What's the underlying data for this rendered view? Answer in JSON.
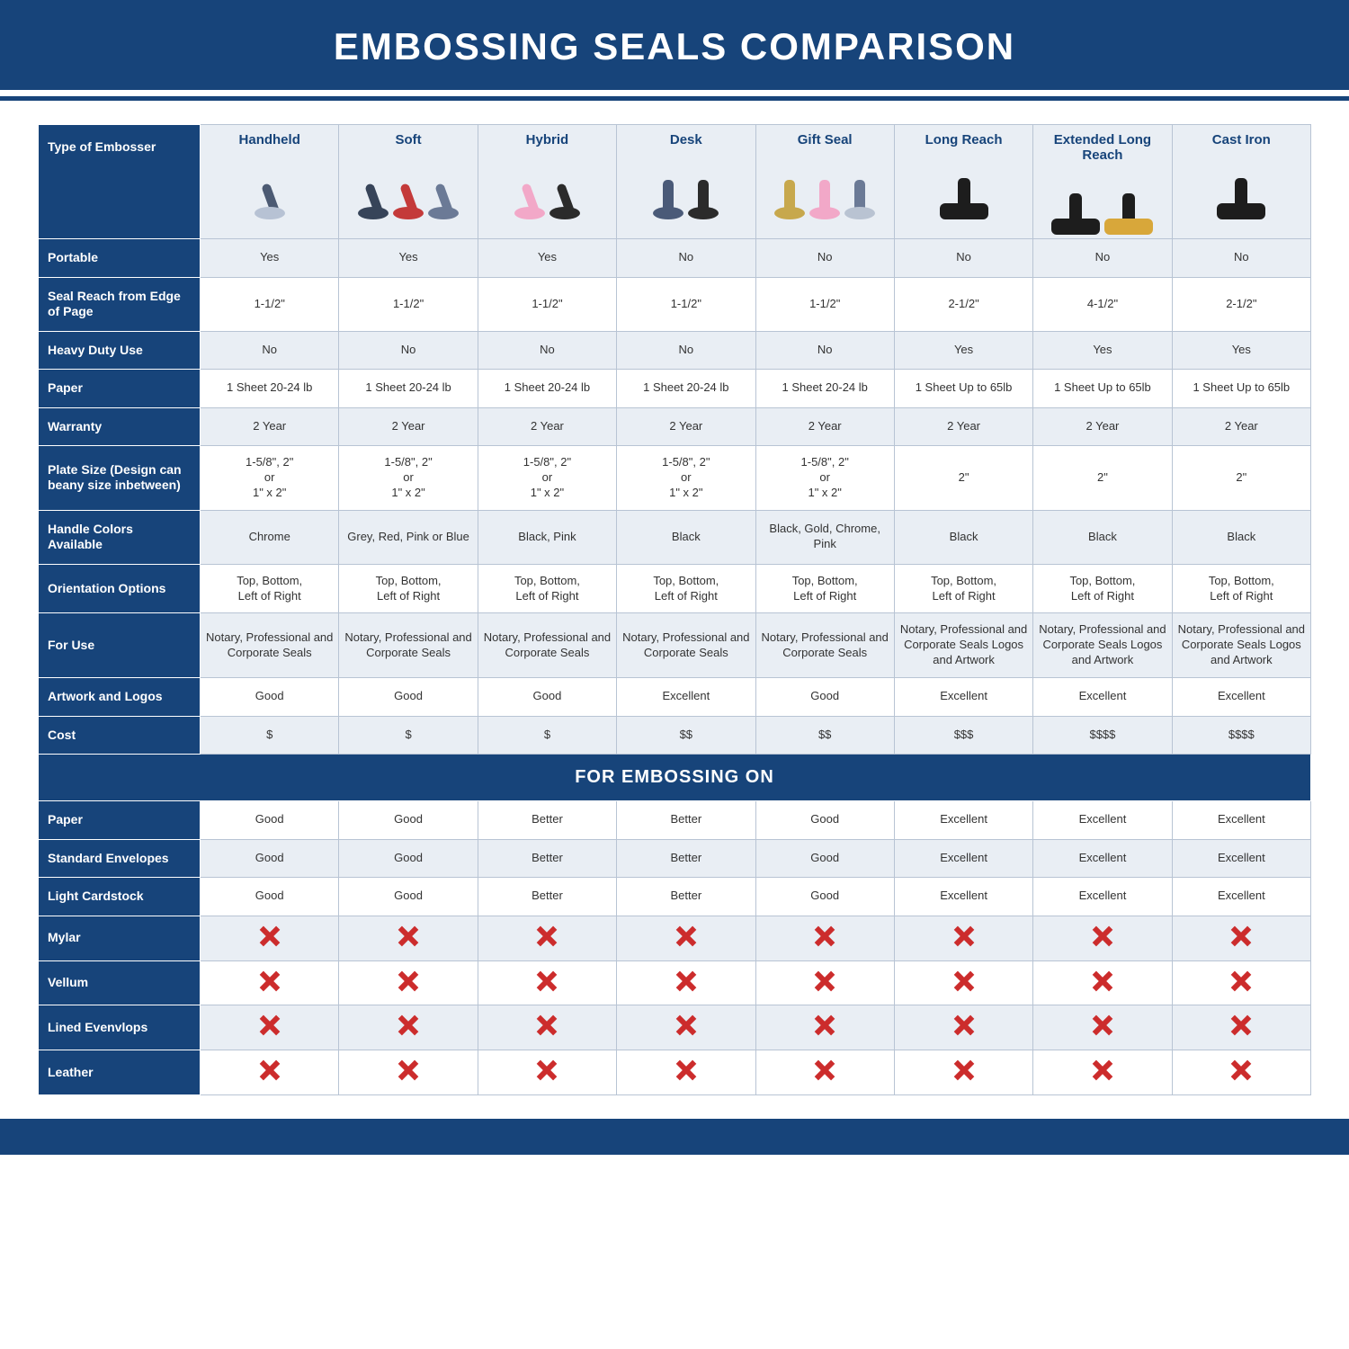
{
  "title": "EMBOSSING SEALS COMPARISON",
  "section_label": "FOR EMBOSSING ON",
  "colors": {
    "brand": "#17447a",
    "header_bg": "#e9eef4",
    "border": "#b8c4d4",
    "x_mark": "#cc2c2c",
    "text": "#333333"
  },
  "embosser_icons": {
    "handheld": [
      {
        "base": "#b7c2d4",
        "arm": "#4c5a73"
      }
    ],
    "soft": [
      {
        "base": "#374459",
        "arm": "#374459"
      },
      {
        "base": "#c43a3a",
        "arm": "#c43a3a"
      },
      {
        "base": "#6b7a96",
        "arm": "#6b7a96"
      }
    ],
    "hybrid": [
      {
        "base": "#f2a8c8",
        "arm": "#f2a8c8"
      },
      {
        "base": "#2b2b2b",
        "arm": "#2b2b2b"
      }
    ],
    "desk": [
      {
        "base": "#4a5a78",
        "arm": "#4a5a78"
      },
      {
        "base": "#2b2b2b",
        "arm": "#2b2b2b"
      }
    ],
    "gift": [
      {
        "base": "#c7a84d",
        "arm": "#c7a84d"
      },
      {
        "base": "#f2a8c8",
        "arm": "#f2a8c8"
      },
      {
        "base": "#b9c3d2",
        "arm": "#6b7a96"
      }
    ],
    "long": [
      {
        "base": "#1d1d1d",
        "arm": "#1d1d1d"
      }
    ],
    "ext": [
      {
        "base": "#1d1d1d",
        "arm": "#1d1d1d"
      },
      {
        "base": "#d8a73a",
        "arm": "#1d1d1d"
      }
    ],
    "cast": [
      {
        "base": "#1d1d1d",
        "arm": "#1d1d1d"
      }
    ]
  },
  "columns": [
    {
      "key": "handheld",
      "label": "Handheld",
      "icon": "handheld",
      "style": "hand"
    },
    {
      "key": "soft",
      "label": "Soft",
      "icon": "soft",
      "style": "hand"
    },
    {
      "key": "hybrid",
      "label": "Hybrid",
      "icon": "hybrid",
      "style": "hand"
    },
    {
      "key": "desk",
      "label": "Desk",
      "icon": "desk",
      "style": "desk"
    },
    {
      "key": "gift",
      "label": "Gift Seal",
      "icon": "gift",
      "style": "desk"
    },
    {
      "key": "long",
      "label": "Long Reach",
      "icon": "long",
      "style": "heavy"
    },
    {
      "key": "ext",
      "label": "Extended Long Reach",
      "icon": "ext",
      "style": "heavy"
    },
    {
      "key": "cast",
      "label": "Cast Iron",
      "icon": "cast",
      "style": "heavy"
    }
  ],
  "row_labels": {
    "type": "Type of Embosser",
    "portable": "Portable",
    "reach": "Seal Reach from Edge of Page",
    "heavy": "Heavy Duty Use",
    "paper": "Paper",
    "warranty": "Warranty",
    "plate": "Plate Size (Design can beany size inbetween)",
    "handle": "Handle Colors Available",
    "orient": "Orientation Options",
    "foruse": "For Use",
    "artwork": "Artwork and Logos",
    "cost": "Cost",
    "e_paper": "Paper",
    "e_env": "Standard Envelopes",
    "e_card": "Light Cardstock",
    "e_mylar": "Mylar",
    "e_vellum": "Vellum",
    "e_lined": "Lined Evenvlops",
    "e_leather": "Leather"
  },
  "rows": [
    {
      "key": "portable",
      "alt": true,
      "cells": [
        "Yes",
        "Yes",
        "Yes",
        "No",
        "No",
        "No",
        "No",
        "No"
      ]
    },
    {
      "key": "reach",
      "alt": false,
      "cells": [
        "1-1/2\"",
        "1-1/2\"",
        "1-1/2\"",
        "1-1/2\"",
        "1-1/2\"",
        "2-1/2\"",
        "4-1/2\"",
        "2-1/2\""
      ]
    },
    {
      "key": "heavy",
      "alt": true,
      "cells": [
        "No",
        "No",
        "No",
        "No",
        "No",
        "Yes",
        "Yes",
        "Yes"
      ]
    },
    {
      "key": "paper",
      "alt": false,
      "cells": [
        "1 Sheet 20-24 lb",
        "1 Sheet 20-24 lb",
        "1 Sheet 20-24 lb",
        "1 Sheet 20-24 lb",
        "1 Sheet 20-24 lb",
        "1 Sheet Up to 65lb",
        "1 Sheet Up to 65lb",
        "1 Sheet Up to 65lb"
      ]
    },
    {
      "key": "warranty",
      "alt": true,
      "cells": [
        "2 Year",
        "2 Year",
        "2 Year",
        "2 Year",
        "2 Year",
        "2 Year",
        "2 Year",
        "2 Year"
      ]
    },
    {
      "key": "plate",
      "alt": false,
      "cells": [
        "1-5/8\", 2\"\nor\n1\" x 2\"",
        "1-5/8\", 2\"\nor\n1\" x 2\"",
        "1-5/8\", 2\"\nor\n1\" x 2\"",
        "1-5/8\", 2\"\nor\n1\" x 2\"",
        "1-5/8\", 2\"\nor\n1\" x 2\"",
        "2\"",
        "2\"",
        "2\""
      ]
    },
    {
      "key": "handle",
      "alt": true,
      "cells": [
        "Chrome",
        "Grey, Red, Pink or Blue",
        "Black, Pink",
        "Black",
        "Black, Gold, Chrome, Pink",
        "Black",
        "Black",
        "Black"
      ]
    },
    {
      "key": "orient",
      "alt": false,
      "cells": [
        "Top, Bottom,\nLeft of Right",
        "Top, Bottom,\nLeft of Right",
        "Top, Bottom,\nLeft of Right",
        "Top, Bottom,\nLeft of Right",
        "Top, Bottom,\nLeft of Right",
        "Top, Bottom,\nLeft of Right",
        "Top, Bottom,\nLeft of Right",
        "Top, Bottom,\nLeft of Right"
      ]
    },
    {
      "key": "foruse",
      "alt": true,
      "cells": [
        "Notary, Professional and Corporate Seals",
        "Notary, Professional and Corporate Seals",
        "Notary, Professional and Corporate Seals",
        "Notary, Professional and Corporate Seals",
        "Notary, Professional and Corporate Seals",
        "Notary, Professional and Corporate Seals Logos and Artwork",
        "Notary, Professional and Corporate Seals Logos and Artwork",
        "Notary, Professional and Corporate Seals Logos and Artwork"
      ]
    },
    {
      "key": "artwork",
      "alt": false,
      "cells": [
        "Good",
        "Good",
        "Good",
        "Excellent",
        "Good",
        "Excellent",
        "Excellent",
        "Excellent"
      ]
    },
    {
      "key": "cost",
      "alt": true,
      "cells": [
        "$",
        "$",
        "$",
        "$$",
        "$$",
        "$$$",
        "$$$$",
        "$$$$"
      ]
    }
  ],
  "emboss_rows": [
    {
      "key": "e_paper",
      "alt": false,
      "cells": [
        "Good",
        "Good",
        "Better",
        "Better",
        "Good",
        "Excellent",
        "Excellent",
        "Excellent"
      ]
    },
    {
      "key": "e_env",
      "alt": true,
      "cells": [
        "Good",
        "Good",
        "Better",
        "Better",
        "Good",
        "Excellent",
        "Excellent",
        "Excellent"
      ]
    },
    {
      "key": "e_card",
      "alt": false,
      "cells": [
        "Good",
        "Good",
        "Better",
        "Better",
        "Good",
        "Excellent",
        "Excellent",
        "Excellent"
      ]
    },
    {
      "key": "e_mylar",
      "alt": true,
      "cells": [
        "X",
        "X",
        "X",
        "X",
        "X",
        "X",
        "X",
        "X"
      ]
    },
    {
      "key": "e_vellum",
      "alt": false,
      "cells": [
        "X",
        "X",
        "X",
        "X",
        "X",
        "X",
        "X",
        "X"
      ]
    },
    {
      "key": "e_lined",
      "alt": true,
      "cells": [
        "X",
        "X",
        "X",
        "X",
        "X",
        "X",
        "X",
        "X"
      ]
    },
    {
      "key": "e_leather",
      "alt": false,
      "cells": [
        "X",
        "X",
        "X",
        "X",
        "X",
        "X",
        "X",
        "X"
      ]
    }
  ]
}
